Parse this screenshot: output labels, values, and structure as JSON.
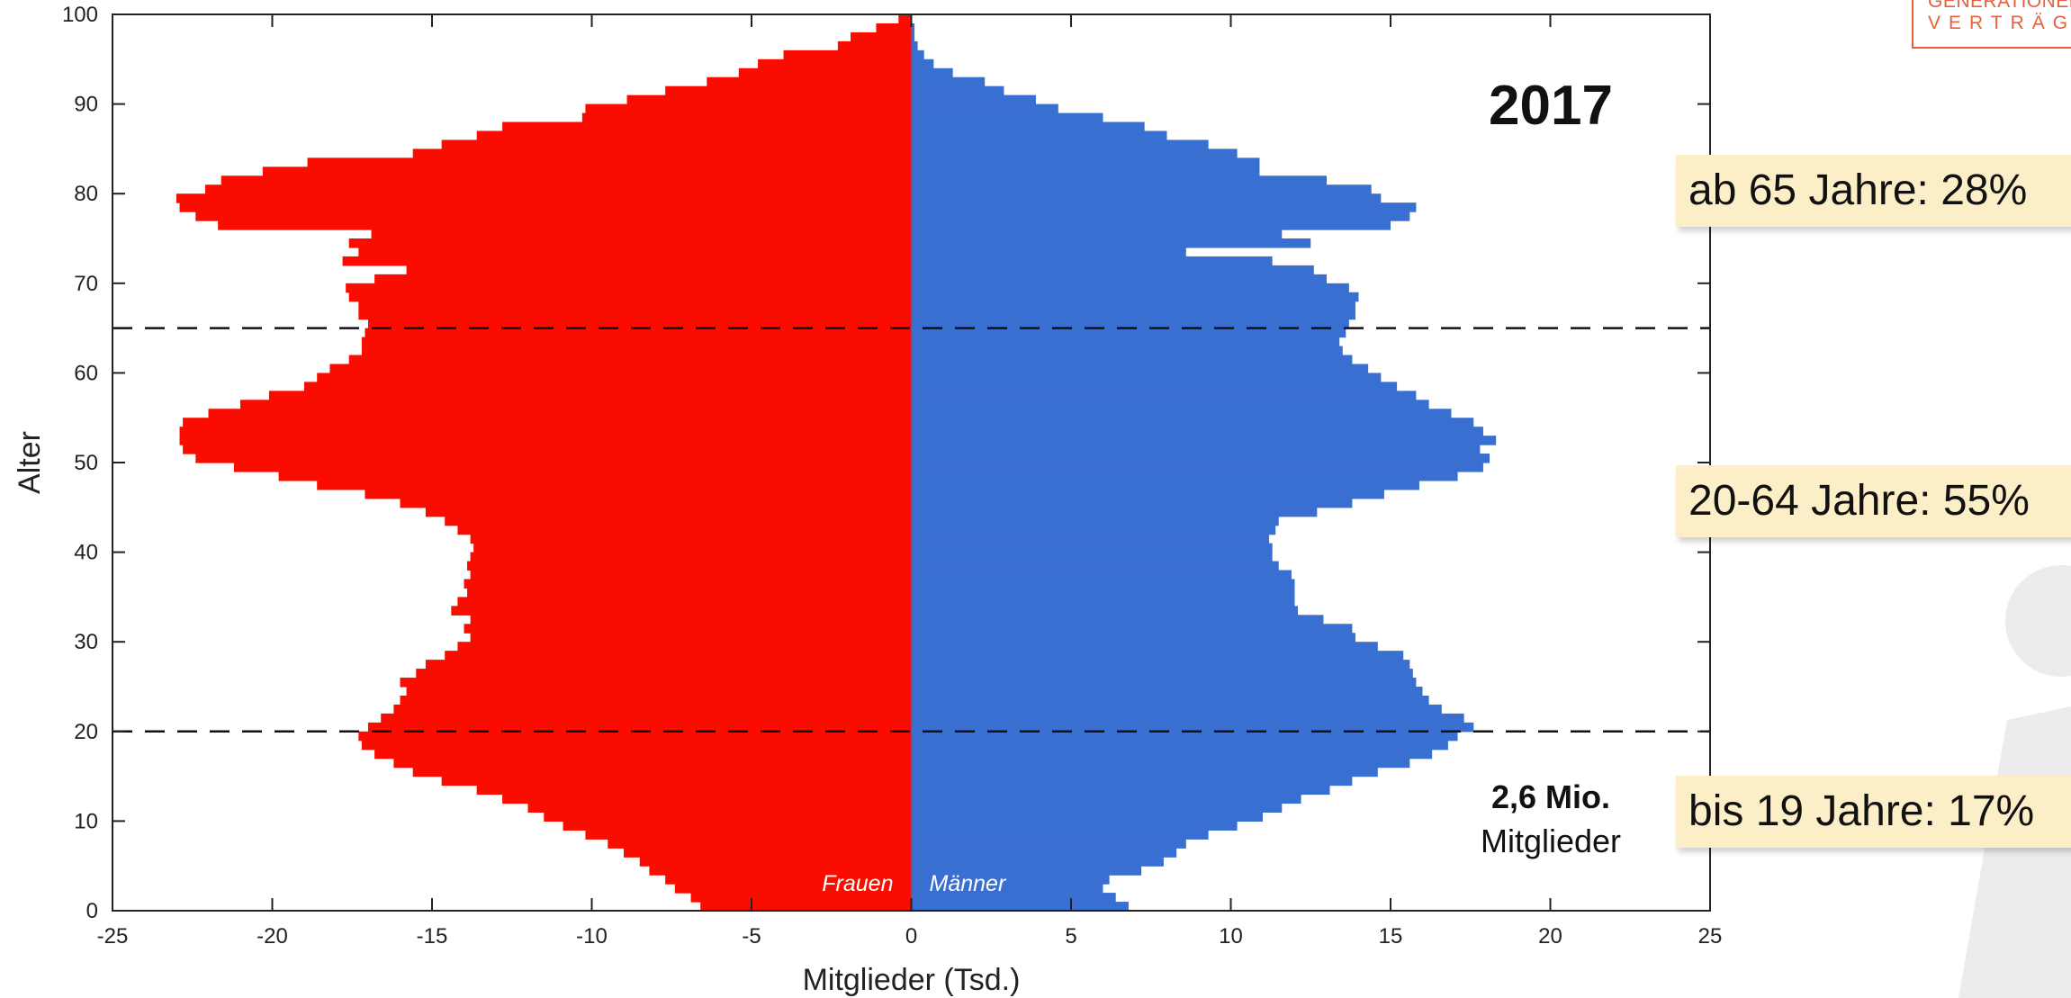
{
  "logo": {
    "line1": "GENERATIONEN",
    "line2": "VERTRÄGE"
  },
  "callouts": [
    {
      "text": "ab 65 Jahre: 28%"
    },
    {
      "text": "20-64 Jahre: 55%"
    },
    {
      "text": "bis 19 Jahre: 17%"
    }
  ],
  "colors": {
    "female": "#fa0d00",
    "male": "#3a6fd2",
    "callout_bg": "#fcefc8",
    "accent": "#e8603c"
  },
  "chart_data": {
    "type": "bar",
    "orientation": "horizontal",
    "subtype": "population-pyramid",
    "xlabel": "Mitglieder (Tsd.)",
    "ylabel": "Alter",
    "xlim": [
      -25,
      25
    ],
    "ylim": [
      0,
      100
    ],
    "xticks": [
      -25,
      -20,
      -15,
      -10,
      -5,
      0,
      5,
      10,
      15,
      20,
      25
    ],
    "yticks": [
      0,
      10,
      20,
      30,
      40,
      50,
      60,
      70,
      80,
      90,
      100
    ],
    "year_label": "2017",
    "total_value": "2,6 Mio.",
    "total_label": "Mitglieder",
    "reference_lines_y": [
      20,
      65
    ],
    "ages": [
      0,
      1,
      2,
      3,
      4,
      5,
      6,
      7,
      8,
      9,
      10,
      11,
      12,
      13,
      14,
      15,
      16,
      17,
      18,
      19,
      20,
      21,
      22,
      23,
      24,
      25,
      26,
      27,
      28,
      29,
      30,
      31,
      32,
      33,
      34,
      35,
      36,
      37,
      38,
      39,
      40,
      41,
      42,
      43,
      44,
      45,
      46,
      47,
      48,
      49,
      50,
      51,
      52,
      53,
      54,
      55,
      56,
      57,
      58,
      59,
      60,
      61,
      62,
      63,
      64,
      65,
      66,
      67,
      68,
      69,
      70,
      71,
      72,
      73,
      74,
      75,
      76,
      77,
      78,
      79,
      80,
      81,
      82,
      83,
      84,
      85,
      86,
      87,
      88,
      89,
      90,
      91,
      92,
      93,
      94,
      95,
      96,
      97,
      98,
      99
    ],
    "series": [
      {
        "name": "Frauen",
        "values": [
          -6.6,
          -6.9,
          -7.4,
          -7.7,
          -8.2,
          -8.5,
          -9.0,
          -9.5,
          -10.2,
          -10.9,
          -11.5,
          -12.0,
          -12.8,
          -13.6,
          -14.7,
          -15.6,
          -16.2,
          -16.8,
          -17.2,
          -17.3,
          -17.0,
          -16.6,
          -16.2,
          -16.0,
          -15.8,
          -16.0,
          -15.5,
          -15.2,
          -14.6,
          -14.2,
          -13.8,
          -14.0,
          -13.8,
          -14.4,
          -14.2,
          -13.9,
          -14.0,
          -13.8,
          -13.9,
          -13.8,
          -13.7,
          -13.8,
          -14.2,
          -14.6,
          -15.2,
          -16.0,
          -17.1,
          -18.6,
          -19.8,
          -21.2,
          -22.4,
          -22.8,
          -22.9,
          -22.9,
          -22.8,
          -22.0,
          -21.0,
          -20.1,
          -19.0,
          -18.6,
          -18.2,
          -17.6,
          -17.2,
          -17.2,
          -17.1,
          -17.0,
          -17.3,
          -17.3,
          -17.6,
          -17.7,
          -16.8,
          -15.8,
          -17.8,
          -17.3,
          -17.6,
          -16.9,
          -21.7,
          -22.4,
          -22.9,
          -23.0,
          -22.1,
          -21.6,
          -20.3,
          -18.9,
          -15.6,
          -14.7,
          -13.6,
          -12.8,
          -10.3,
          -10.2,
          -8.9,
          -7.7,
          -6.4,
          -5.4,
          -4.8,
          -4.0,
          -2.3,
          -1.9,
          -1.1,
          -0.4
        ]
      },
      {
        "name": "Männer",
        "values": [
          6.8,
          6.4,
          6.0,
          6.2,
          7.2,
          7.9,
          8.3,
          8.6,
          9.3,
          10.2,
          11.0,
          11.6,
          12.2,
          13.1,
          13.8,
          14.6,
          15.6,
          16.3,
          16.8,
          17.1,
          17.6,
          17.3,
          16.6,
          16.2,
          16.0,
          15.8,
          15.7,
          15.6,
          15.4,
          14.6,
          13.9,
          13.8,
          12.9,
          12.1,
          12.0,
          12.0,
          12.0,
          11.9,
          11.5,
          11.3,
          11.3,
          11.2,
          11.4,
          11.5,
          12.7,
          13.8,
          14.8,
          15.9,
          17.1,
          17.9,
          18.1,
          17.8,
          18.3,
          17.9,
          17.6,
          16.9,
          16.2,
          15.8,
          15.2,
          14.7,
          14.3,
          13.8,
          13.5,
          13.4,
          13.6,
          13.7,
          13.9,
          13.9,
          14.0,
          13.7,
          13.0,
          12.6,
          11.3,
          8.6,
          12.5,
          11.6,
          15.0,
          15.6,
          15.8,
          14.7,
          14.4,
          13.0,
          10.9,
          10.9,
          10.2,
          9.3,
          8.0,
          7.3,
          6.0,
          4.6,
          3.9,
          2.9,
          2.3,
          1.3,
          0.7,
          0.4,
          0.2,
          0.1,
          0.1,
          0.0
        ]
      }
    ]
  }
}
